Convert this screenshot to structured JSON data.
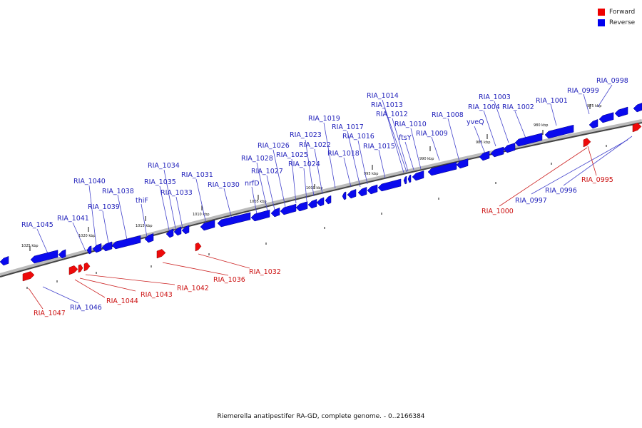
{
  "legend": {
    "forward_label": "Forward",
    "reverse_label": "Reverse",
    "forward_color": "#ee0000",
    "reverse_color": "#0000ee"
  },
  "caption": "Riemerella anatipestifer RA-GD, complete genome. - 0..2166384",
  "diagram": {
    "type": "circular genome map (zoomed arc section)",
    "ticks": [
      "975 kbp",
      "980 kbp",
      "985 kbp",
      "990 kbp",
      "995 kbp",
      "1000 kbp",
      "1005 kbp",
      "1010 kbp",
      "1015 kbp",
      "1020 kbp",
      "1025 kbp"
    ],
    "reverse_genes": [
      "RIA_0998",
      "RIA_0999",
      "RIA_1001",
      "RIA_1002",
      "RIA_1003",
      "RIA_1004",
      "yveQ",
      "RIA_1008",
      "RIA_1009",
      "RIA_1010",
      "ftsY",
      "RIA_1012",
      "RIA_1013",
      "RIA_1014",
      "RIA_1015",
      "RIA_1016",
      "RIA_1017",
      "RIA_1018",
      "RIA_1019",
      "RIA_1022",
      "RIA_1023",
      "RIA_1024",
      "RIA_1025",
      "RIA_1026",
      "RIA_1027",
      "RIA_1028",
      "nrfD",
      "RIA_1030",
      "RIA_1031",
      "RIA_1033",
      "RIA_1034",
      "RIA_1035",
      "thiF",
      "RIA_1038",
      "RIA_1039",
      "RIA_1040",
      "RIA_1041",
      "RIA_1045",
      "RIA_1046",
      "RIA_0996",
      "RIA_0997"
    ],
    "forward_genes": [
      "RIA_0995",
      "RIA_1000",
      "RIA_1032",
      "RIA_1036",
      "RIA_1042",
      "RIA_1043",
      "RIA_1044",
      "RIA_1047"
    ]
  }
}
